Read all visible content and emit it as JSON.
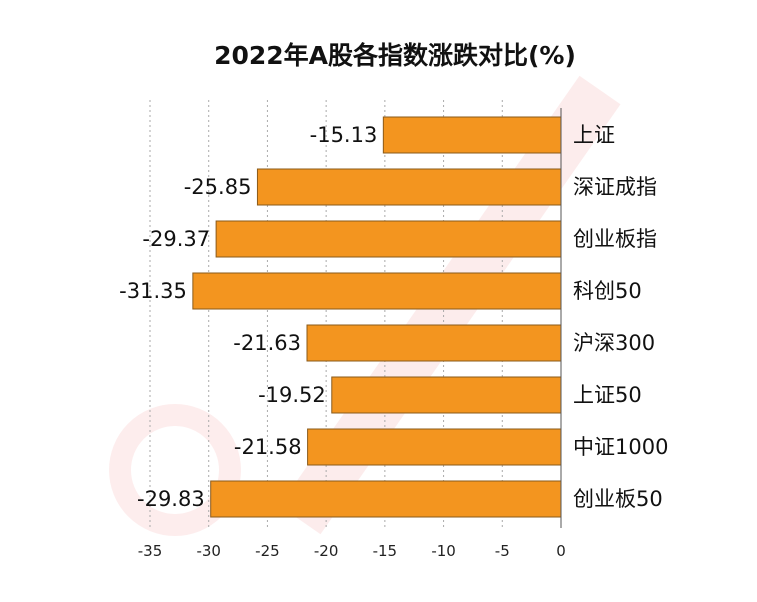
{
  "chart_data": {
    "type": "bar",
    "orientation": "horizontal",
    "title": "2022年A股各指数涨跌对比(%)",
    "categories": [
      "上证",
      "深证成指",
      "创业板指",
      "科创50",
      "沪深300",
      "上证50",
      "中证1000",
      "创业板50"
    ],
    "values": [
      -15.13,
      -25.85,
      -29.37,
      -31.35,
      -21.63,
      -19.52,
      -21.58,
      -29.83
    ],
    "data_labels": [
      "-15.13",
      "-25.85",
      "-29.37",
      "-31.35",
      "-21.63",
      "-19.52",
      "-21.58",
      "-29.83"
    ],
    "xlim": [
      -35,
      0
    ],
    "xticks": [
      -35,
      -30,
      -25,
      -20,
      -15,
      -10,
      -5,
      0
    ],
    "xtick_labels": [
      "-35",
      "-30",
      "-25",
      "-20",
      "-15",
      "-10",
      "-5",
      "0"
    ],
    "grid": "vertical dashed",
    "legend": "none",
    "bar_color": "#F3951F",
    "bar_border_color": "#8a5a1a"
  }
}
